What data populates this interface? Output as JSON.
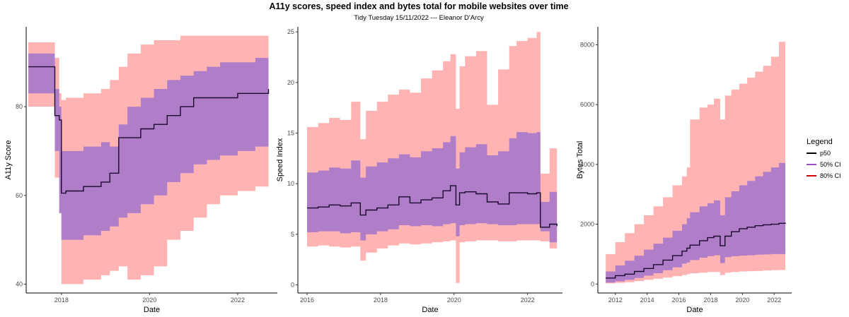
{
  "title": "A11y scores, speed index and bytes total for mobile websites over time",
  "subtitle": "Tidy Tuesday 15/11/2022 --- Eleanor D'Arcy",
  "colors": {
    "p50": "#1a0a2e",
    "ci50": "#b07ec9",
    "ci80": "#ffb3b3",
    "legend_p50": "#000000",
    "legend_ci50": "#9b4dca",
    "legend_ci80": "#cc0000",
    "axis": "#000000"
  },
  "legend": {
    "title": "Legend",
    "items": [
      {
        "label": "p50",
        "color_key": "legend_p50"
      },
      {
        "label": "50% CI",
        "color_key": "legend_ci50"
      },
      {
        "label": "80% CI",
        "color_key": "legend_ci80"
      }
    ],
    "position": "right"
  },
  "chart_data": [
    {
      "type": "area",
      "xlabel": "Date",
      "ylabel": "A11y Score",
      "xlim": [
        2017.2,
        2022.9
      ],
      "ylim": [
        38,
        98
      ],
      "xticks": [
        2018,
        2020,
        2022
      ],
      "yticks": [
        40,
        60,
        80
      ],
      "grid": false,
      "x": [
        2017.25,
        2017.7,
        2017.8,
        2017.85,
        2017.95,
        2018.0,
        2018.05,
        2018.1,
        2018.5,
        2018.9,
        2019.1,
        2019.3,
        2019.5,
        2019.8,
        2020.1,
        2020.4,
        2020.7,
        2021.0,
        2021.3,
        2021.6,
        2022.0,
        2022.4,
        2022.7
      ],
      "p50": [
        89,
        89,
        89,
        78,
        77,
        60.5,
        60.5,
        61,
        62,
        63,
        65,
        73,
        73,
        75,
        76,
        78,
        80,
        82,
        82,
        82,
        83,
        83,
        84
      ],
      "q25": [
        83,
        83,
        83,
        70,
        56,
        50,
        50,
        50,
        51,
        52,
        53,
        55,
        56,
        58,
        60,
        63,
        65,
        67,
        68,
        69,
        70,
        71,
        73.5
      ],
      "q75": [
        92,
        92,
        92,
        84,
        80,
        70,
        70,
        70,
        71,
        72,
        71,
        76,
        80,
        82,
        84,
        86,
        87,
        88,
        89,
        90,
        90,
        91,
        91
      ],
      "q10": [
        80,
        80,
        80,
        64,
        61,
        40,
        40,
        40,
        41,
        42,
        43,
        44,
        41,
        42,
        44,
        50,
        52,
        55,
        58,
        60,
        61,
        62,
        63
      ],
      "q90": [
        94.5,
        94.5,
        94.5,
        91,
        83,
        81.5,
        81.5,
        82,
        83,
        84,
        86,
        89,
        92,
        94,
        95,
        95,
        96,
        96,
        96,
        96,
        96,
        96,
        96
      ]
    },
    {
      "type": "area",
      "xlabel": "Date",
      "ylabel": "Speed Index",
      "xlim": [
        2015.75,
        2022.95
      ],
      "ylim": [
        -0.8,
        25.5
      ],
      "xticks": [
        2016,
        2018,
        2020,
        2022
      ],
      "yticks": [
        0,
        5,
        10,
        15,
        20,
        25
      ],
      "grid": false,
      "x": [
        2016.0,
        2016.3,
        2016.6,
        2016.9,
        2017.2,
        2017.45,
        2017.6,
        2017.9,
        2018.2,
        2018.5,
        2018.8,
        2019.1,
        2019.4,
        2019.7,
        2019.9,
        2020.05,
        2020.15,
        2020.3,
        2020.6,
        2020.9,
        2021.2,
        2021.5,
        2021.7,
        2022.0,
        2022.25,
        2022.35,
        2022.6,
        2022.8
      ],
      "p50": [
        7.6,
        7.7,
        7.9,
        7.8,
        8.1,
        6.9,
        7.4,
        7.6,
        7.9,
        8.7,
        8.1,
        8.4,
        8.6,
        9.3,
        9.8,
        7.9,
        9.1,
        9.2,
        9.0,
        8.2,
        8.0,
        9.1,
        9.1,
        9.0,
        9.1,
        5.7,
        6.0,
        5.8
      ],
      "q25": [
        5.2,
        5.3,
        5.3,
        5.1,
        5.2,
        4.4,
        5.0,
        5.3,
        5.5,
        5.9,
        5.8,
        5.9,
        5.8,
        6.0,
        6.1,
        4.8,
        5.9,
        6.0,
        6.1,
        6.0,
        5.9,
        5.9,
        6.0,
        6.0,
        6.0,
        5.3,
        4.2,
        4.0
      ],
      "q75": [
        11.1,
        11.3,
        11.6,
        11.5,
        12.3,
        10.6,
        11.7,
        12.1,
        12.5,
        12.9,
        12.6,
        13.2,
        13.5,
        14.1,
        14.7,
        11.5,
        13.1,
        13.6,
        13.9,
        12.8,
        13.2,
        14.5,
        15.1,
        15.0,
        15.1,
        8.2,
        9.2,
        8.8
      ],
      "q10": [
        3.8,
        3.9,
        3.8,
        3.7,
        3.8,
        2.4,
        3.2,
        3.6,
        3.9,
        4.1,
        4.0,
        4.1,
        4.2,
        4.3,
        4.4,
        0.2,
        4.2,
        4.3,
        4.4,
        4.4,
        4.3,
        4.3,
        4.4,
        4.4,
        4.4,
        4.3,
        3.6,
        3.5
      ],
      "q90": [
        15.6,
        16.0,
        16.5,
        16.3,
        18.1,
        14.4,
        17.2,
        18.1,
        18.8,
        19.3,
        19.0,
        20.4,
        21.2,
        22.1,
        22.8,
        17.4,
        21.6,
        22.6,
        23.1,
        17.8,
        21.3,
        23.6,
        24.1,
        24.4,
        25.0,
        11.0,
        13.5,
        13.2
      ]
    },
    {
      "type": "area",
      "xlabel": "Date",
      "ylabel": "Bytes Total",
      "xlim": [
        2010.9,
        2023.1
      ],
      "ylim": [
        -300,
        8600
      ],
      "xticks": [
        2012,
        2014,
        2016,
        2018,
        2020,
        2022
      ],
      "yticks": [
        0,
        2000,
        4000,
        6000,
        8000
      ],
      "grid": false,
      "x": [
        2011.4,
        2012.0,
        2012.6,
        2013.2,
        2013.8,
        2014.4,
        2015.0,
        2015.6,
        2016.2,
        2016.5,
        2016.7,
        2017.3,
        2017.8,
        2018.2,
        2018.6,
        2018.9,
        2019.3,
        2019.8,
        2020.3,
        2020.8,
        2021.3,
        2021.8,
        2022.3,
        2022.7
      ],
      "p50": [
        200,
        280,
        330,
        420,
        520,
        650,
        800,
        950,
        1100,
        1200,
        1300,
        1450,
        1550,
        1600,
        1280,
        1600,
        1750,
        1850,
        1900,
        1950,
        1980,
        2000,
        2030,
        2050
      ],
      "q25": [
        50,
        90,
        140,
        200,
        280,
        360,
        460,
        560,
        680,
        720,
        800,
        880,
        930,
        960,
        700,
        900,
        930,
        950,
        960,
        980,
        990,
        1000,
        1000,
        1020
      ],
      "q75": [
        420,
        620,
        780,
        950,
        1150,
        1350,
        1550,
        1780,
        2000,
        2200,
        2400,
        2600,
        2700,
        2800,
        2300,
        2900,
        3100,
        3300,
        3450,
        3600,
        3750,
        3900,
        4050,
        4100
      ],
      "q10": [
        20,
        40,
        60,
        100,
        140,
        180,
        220,
        260,
        300,
        330,
        360,
        380,
        400,
        400,
        300,
        380,
        400,
        420,
        430,
        440,
        450,
        460,
        470,
        480
      ],
      "q90": [
        1000,
        1400,
        1700,
        2000,
        2300,
        2600,
        2900,
        3300,
        3600,
        3900,
        5500,
        5900,
        6000,
        6200,
        5500,
        6300,
        6500,
        6700,
        6900,
        7100,
        7300,
        7600,
        8100,
        8250
      ]
    }
  ]
}
